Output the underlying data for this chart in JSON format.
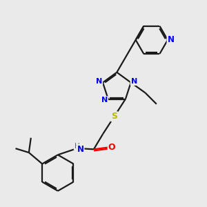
{
  "bg_color": "#eaeaea",
  "bond_color": "#1a1a1a",
  "nitrogen_color": "#0000ee",
  "oxygen_color": "#ee0000",
  "sulfur_color": "#bbbb00",
  "h_color": "#337777",
  "line_width": 1.6,
  "figsize": [
    3.0,
    3.0
  ],
  "dpi": 100,
  "xlim": [
    0,
    10
  ],
  "ylim": [
    0,
    10
  ]
}
